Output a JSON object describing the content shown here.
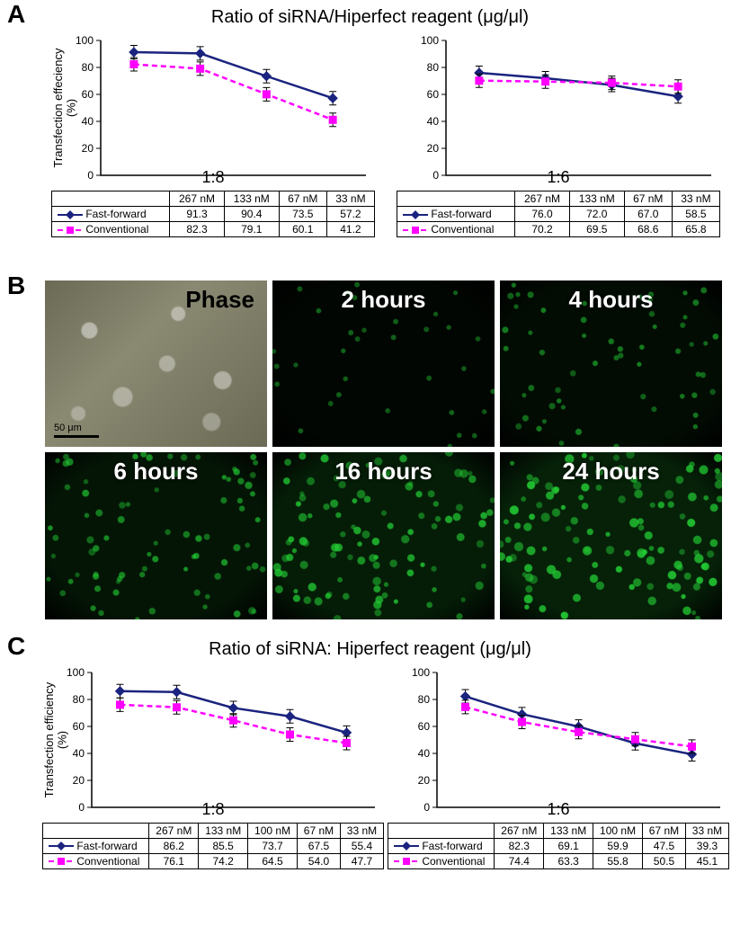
{
  "colors": {
    "fast_forward": "#1a237e",
    "conventional": "#ff00ff",
    "axis": "#000000",
    "background": "#ffffff",
    "fluor_green": "#22cc33"
  },
  "panelA": {
    "label": "A",
    "title": "Ratio of siRNA/Hiperfect reagent (μg/μl)",
    "y_axis_label": "Transfection effeciency\n(%)",
    "y_lim": [
      0,
      100
    ],
    "y_tick_step": 20,
    "series_names": {
      "ff": "Fast-forward",
      "conv": "Conventional"
    },
    "series_styles": {
      "ff": {
        "dash": "none",
        "marker": "diamond",
        "color": "#1a237e"
      },
      "conv": {
        "dash": "6,4",
        "marker": "square",
        "color": "#ff00ff"
      }
    },
    "chart1": {
      "ratio_label": "1:8",
      "categories": [
        "267 nM",
        "133 nM",
        "67 nM",
        "33 nM"
      ],
      "ff": [
        91.3,
        90.4,
        73.5,
        57.2
      ],
      "conv": [
        82.3,
        79.1,
        60.1,
        41.2
      ],
      "err": [
        5,
        5,
        5,
        5
      ]
    },
    "chart2": {
      "ratio_label": "1:6",
      "categories": [
        "267 nM",
        "133 nM",
        "67 nM",
        "33 nM"
      ],
      "ff": [
        76.0,
        72.0,
        67.0,
        58.5
      ],
      "conv": [
        70.2,
        69.5,
        68.6,
        65.8
      ],
      "err": [
        5,
        5,
        5,
        5
      ]
    }
  },
  "panelB": {
    "label": "B",
    "scale_bar_label": "50 μm",
    "cells": [
      {
        "label": "Phase",
        "type": "phase"
      },
      {
        "label": "2 hours",
        "type": "fluor",
        "intensity": 0.15
      },
      {
        "label": "4 hours",
        "type": "fluor",
        "intensity": 0.35
      },
      {
        "label": "6 hours",
        "type": "fluor",
        "intensity": 0.55
      },
      {
        "label": "16 hours",
        "type": "fluor",
        "intensity": 0.75
      },
      {
        "label": "24 hours",
        "type": "fluor",
        "intensity": 0.9
      }
    ]
  },
  "panelC": {
    "label": "C",
    "title": "Ratio of siRNA: Hiperfect reagent (μg/μl)",
    "y_axis_label": "Transfection efficiency\n(%)",
    "y_lim": [
      0,
      100
    ],
    "y_tick_step": 20,
    "series_names": {
      "ff": "Fast-forward",
      "conv": "Conventional"
    },
    "series_styles": {
      "ff": {
        "dash": "none",
        "marker": "diamond",
        "color": "#1a237e"
      },
      "conv": {
        "dash": "6,4",
        "marker": "square",
        "color": "#ff00ff"
      }
    },
    "chart1": {
      "ratio_label": "1:8",
      "categories": [
        "267 nM",
        "133 nM",
        "100 nM",
        "67 nM",
        "33 nM"
      ],
      "ff": [
        86.2,
        85.5,
        73.7,
        67.5,
        55.4
      ],
      "conv": [
        76.1,
        74.2,
        64.5,
        54.0,
        47.7
      ],
      "err": [
        5,
        5,
        5,
        5,
        5
      ]
    },
    "chart2": {
      "ratio_label": "1:6",
      "categories": [
        "267 nM",
        "133 nM",
        "100 nM",
        "67 nM",
        "33 nM"
      ],
      "ff": [
        82.3,
        69.1,
        59.9,
        47.5,
        39.3
      ],
      "conv": [
        74.4,
        63.3,
        55.8,
        50.5,
        45.1
      ],
      "err": [
        5,
        5,
        5,
        5,
        5
      ]
    }
  }
}
